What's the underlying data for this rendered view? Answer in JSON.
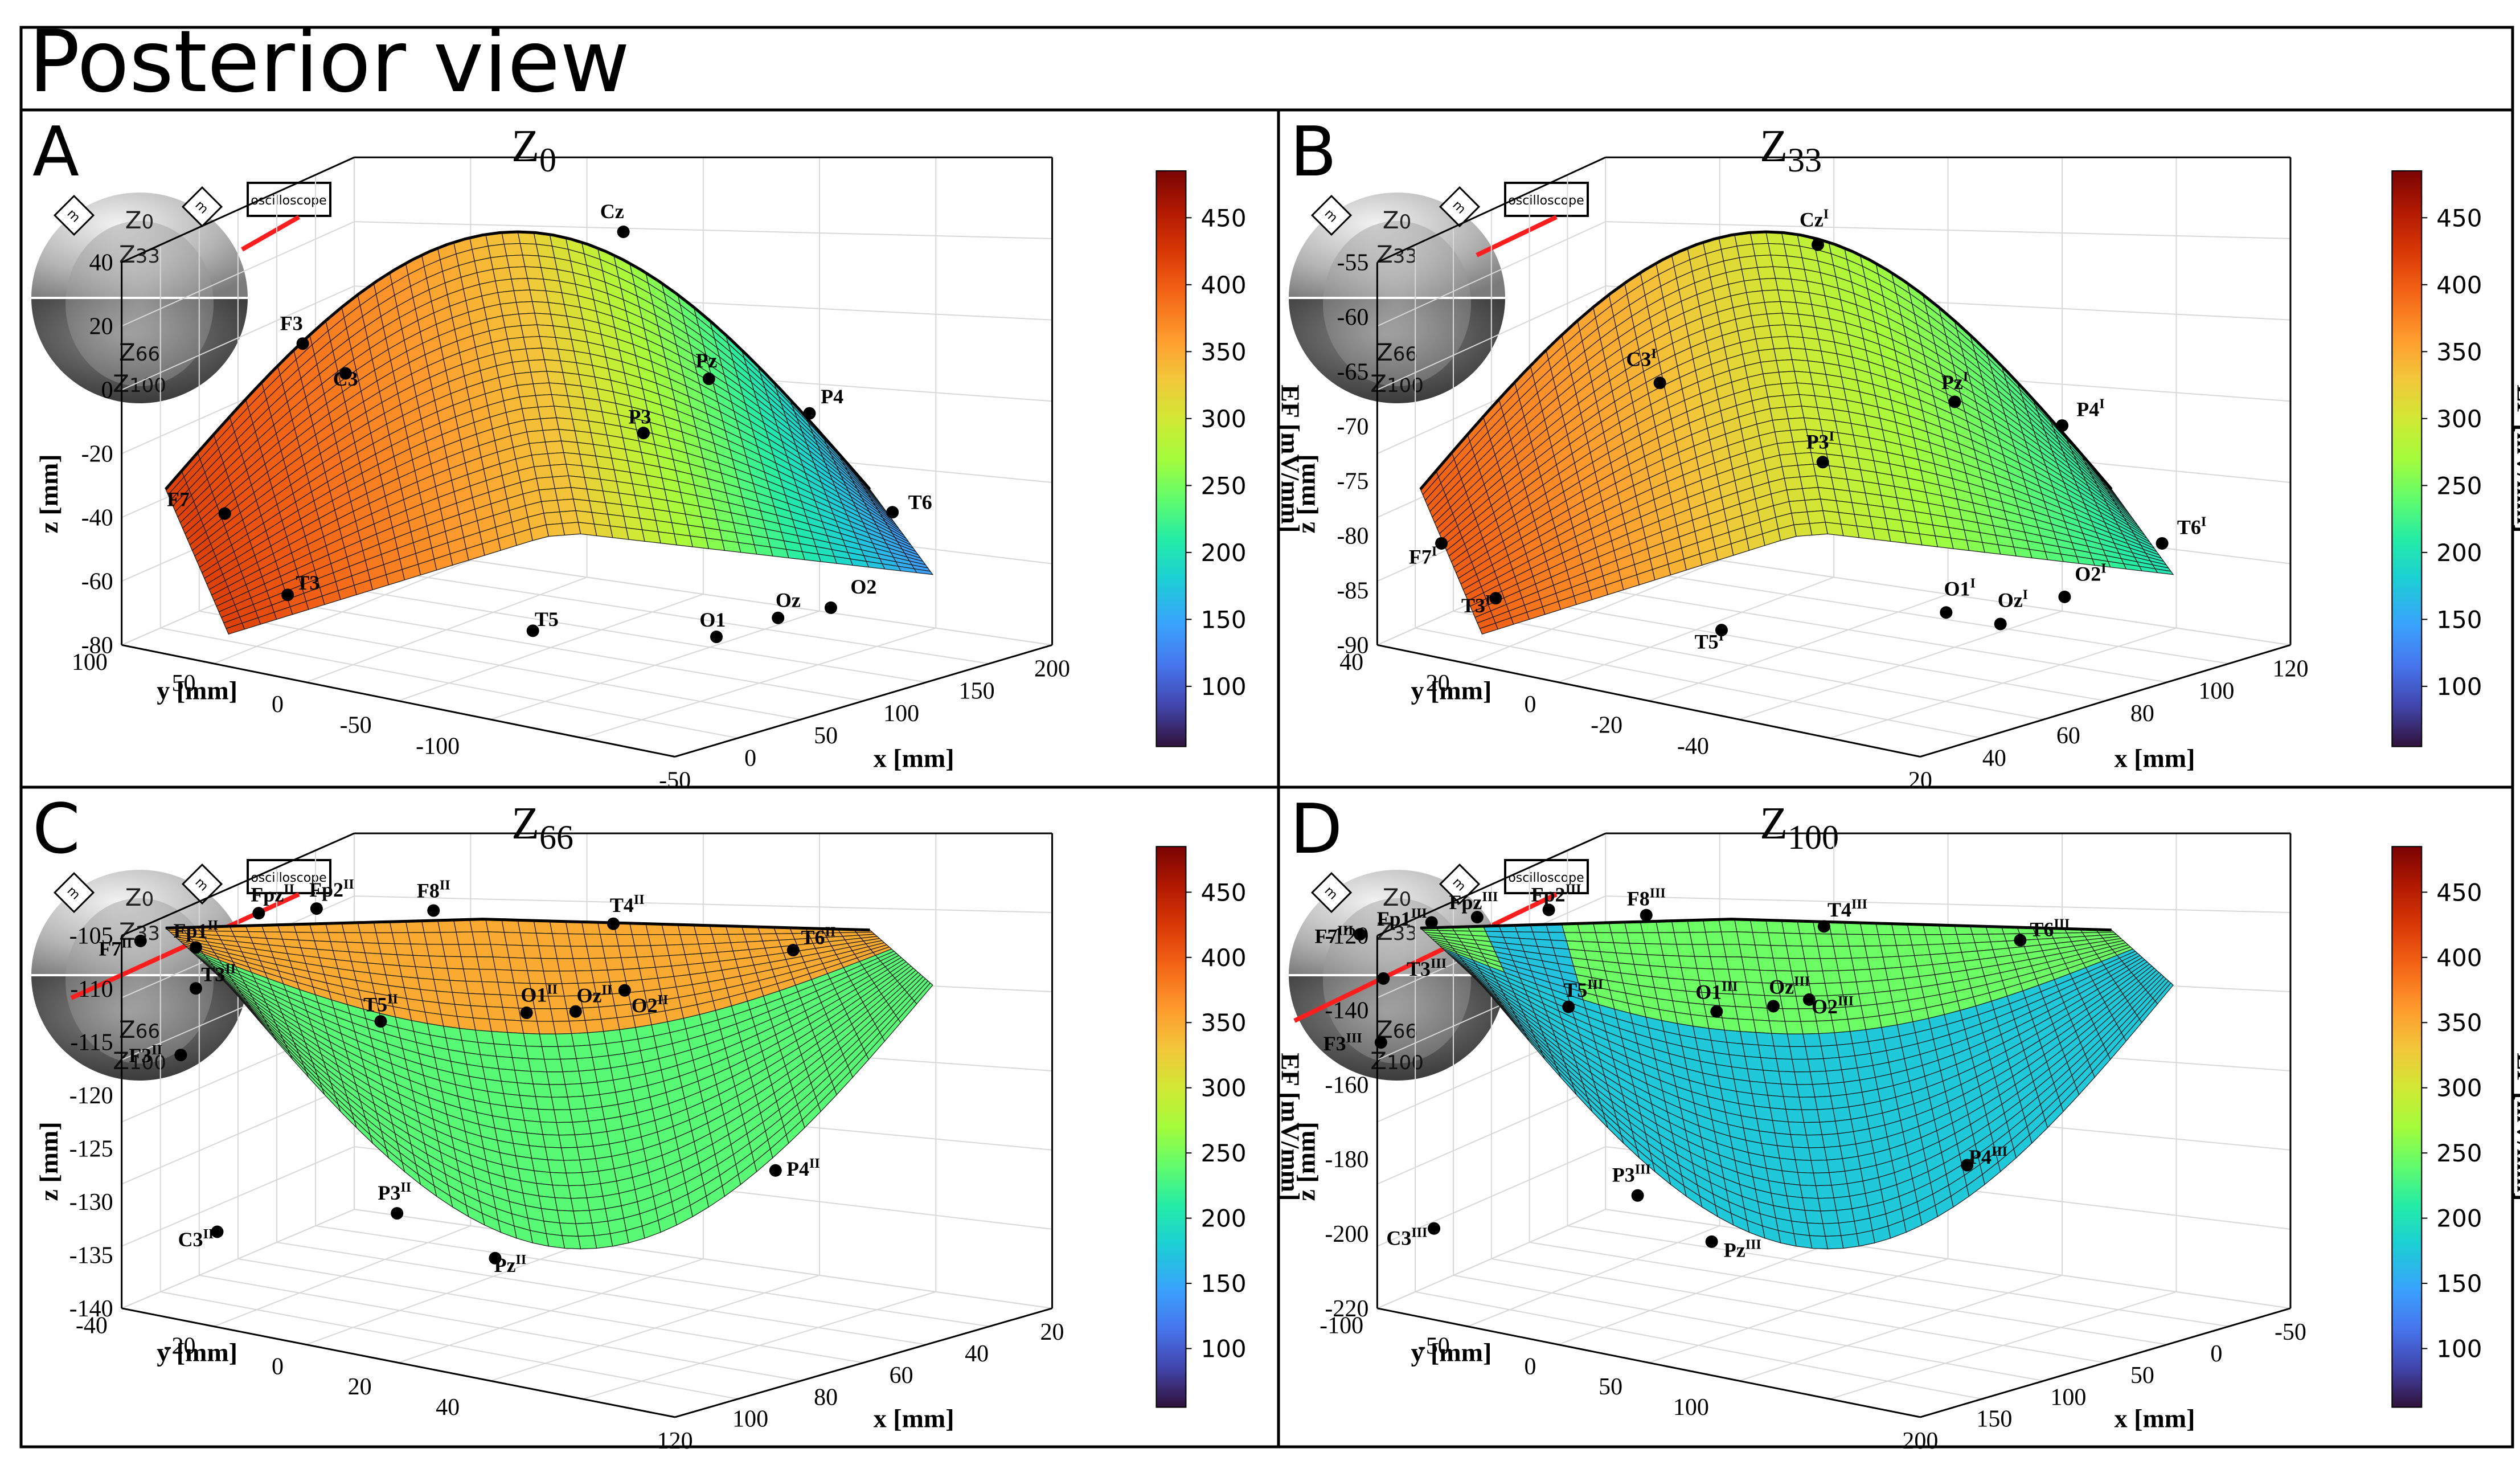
{
  "figure": {
    "title": "Posterior view"
  },
  "colorbar": {
    "label": "EF [mV/mm]",
    "ticks": [
      "100",
      "150",
      "200",
      "250",
      "300",
      "350",
      "400",
      "450"
    ],
    "range": [
      55,
      485
    ]
  },
  "inset": {
    "labels": [
      "Z0",
      "Z33",
      "Z66",
      "Z100"
    ],
    "electrode_label": "m",
    "scope_label": "oscilloscope"
  },
  "chart_data": [
    {
      "panel": "A",
      "type": "surface3d",
      "title": "Z0",
      "title_main": "Z",
      "title_sub": "0",
      "xlabel": "x [mm]",
      "ylabel": "y [mm]",
      "zlabel": "z [mm]",
      "xticks": [
        "-50",
        "0",
        "50",
        "100",
        "150",
        "200"
      ],
      "yticks": [
        "100",
        "50",
        "0",
        "-50",
        "-100"
      ],
      "zticks": [
        "40",
        "20",
        "0",
        "-20",
        "-40",
        "-60",
        "-80"
      ],
      "zlim": [
        -80,
        40
      ],
      "shape": "dome",
      "electrodes": [
        {
          "name": "Cz",
          "sup": ""
        },
        {
          "name": "F3",
          "sup": ""
        },
        {
          "name": "C3",
          "sup": ""
        },
        {
          "name": "Pz",
          "sup": ""
        },
        {
          "name": "P4",
          "sup": ""
        },
        {
          "name": "P3",
          "sup": ""
        },
        {
          "name": "F7",
          "sup": ""
        },
        {
          "name": "T6",
          "sup": ""
        },
        {
          "name": "T3",
          "sup": ""
        },
        {
          "name": "T5",
          "sup": ""
        },
        {
          "name": "O1",
          "sup": ""
        },
        {
          "name": "Oz",
          "sup": ""
        },
        {
          "name": "O2",
          "sup": ""
        }
      ],
      "ef_left": 420,
      "ef_center": 330,
      "ef_right": 140
    },
    {
      "panel": "B",
      "type": "surface3d",
      "title": "Z33",
      "title_main": "Z",
      "title_sub": "33",
      "xlabel": "x [mm]",
      "ylabel": "y [mm]",
      "zlabel": "z [mm]",
      "xticks": [
        "20",
        "40",
        "60",
        "80",
        "100",
        "120"
      ],
      "yticks": [
        "40",
        "20",
        "0",
        "-20",
        "-40"
      ],
      "zticks": [
        "-55",
        "-60",
        "-65",
        "-70",
        "-75",
        "-80",
        "-85",
        "-90"
      ],
      "zlim": [
        -90,
        -55
      ],
      "shape": "dome",
      "electrodes": [
        {
          "name": "Cz",
          "sup": "I"
        },
        {
          "name": "C3",
          "sup": "I"
        },
        {
          "name": "Pz",
          "sup": "I"
        },
        {
          "name": "P4",
          "sup": "I"
        },
        {
          "name": "P3",
          "sup": "I"
        },
        {
          "name": "F7",
          "sup": "I"
        },
        {
          "name": "T6",
          "sup": "I"
        },
        {
          "name": "T3",
          "sup": "I"
        },
        {
          "name": "T5",
          "sup": "I"
        },
        {
          "name": "O1",
          "sup": "I"
        },
        {
          "name": "Oz",
          "sup": "I"
        },
        {
          "name": "O2",
          "sup": "I"
        }
      ],
      "ef_left": 400,
      "ef_center": 300,
      "ef_right": 200
    },
    {
      "panel": "C",
      "type": "surface3d",
      "title": "Z66",
      "title_main": "Z",
      "title_sub": "66",
      "xlabel": "x [mm]",
      "ylabel": "y [mm]",
      "zlabel": "z [mm]",
      "xticks": [
        "120",
        "100",
        "80",
        "60",
        "40",
        "20"
      ],
      "yticks": [
        "-40",
        "-20",
        "0",
        "20",
        "40"
      ],
      "zticks": [
        "-105",
        "-110",
        "-115",
        "-120",
        "-125",
        "-130",
        "-135",
        "-140"
      ],
      "zlim": [
        -140,
        -105
      ],
      "shape": "bowl",
      "electrodes": [
        {
          "name": "Fp1",
          "sup": "II"
        },
        {
          "name": "Fpz",
          "sup": "II"
        },
        {
          "name": "Fp2",
          "sup": "II"
        },
        {
          "name": "F8",
          "sup": "II"
        },
        {
          "name": "T4",
          "sup": "II"
        },
        {
          "name": "F7",
          "sup": "II"
        },
        {
          "name": "T6",
          "sup": "II"
        },
        {
          "name": "T3",
          "sup": "II"
        },
        {
          "name": "T5",
          "sup": "II"
        },
        {
          "name": "O1",
          "sup": "II"
        },
        {
          "name": "Oz",
          "sup": "II"
        },
        {
          "name": "O2",
          "sup": "II"
        },
        {
          "name": "F3",
          "sup": "II"
        },
        {
          "name": "P4",
          "sup": "II"
        },
        {
          "name": "P3",
          "sup": "II"
        },
        {
          "name": "C3",
          "sup": "II"
        },
        {
          "name": "Pz",
          "sup": "II"
        }
      ],
      "ef_rim": 350,
      "ef_bowl": 235
    },
    {
      "panel": "D",
      "type": "surface3d",
      "title": "Z100",
      "title_main": "Z",
      "title_sub": "100",
      "xlabel": "x [mm]",
      "ylabel": "y [mm]",
      "zlabel": "z [mm]",
      "xticks": [
        "200",
        "150",
        "100",
        "50",
        "0",
        "-50"
      ],
      "yticks": [
        "-100",
        "-50",
        "0",
        "50",
        "100"
      ],
      "zticks": [
        "-120",
        "-140",
        "-160",
        "-180",
        "-200",
        "-220"
      ],
      "zlim": [
        -220,
        -120
      ],
      "shape": "bowl",
      "electrodes": [
        {
          "name": "Fp1",
          "sup": "III"
        },
        {
          "name": "Fpz",
          "sup": "III"
        },
        {
          "name": "Fp2",
          "sup": "III"
        },
        {
          "name": "F8",
          "sup": "III"
        },
        {
          "name": "T4",
          "sup": "III"
        },
        {
          "name": "F7",
          "sup": "III"
        },
        {
          "name": "T6",
          "sup": "III"
        },
        {
          "name": "T3",
          "sup": "III"
        },
        {
          "name": "T5",
          "sup": "III"
        },
        {
          "name": "O1",
          "sup": "III"
        },
        {
          "name": "Oz",
          "sup": "III"
        },
        {
          "name": "O2",
          "sup": "III"
        },
        {
          "name": "F3",
          "sup": "III"
        },
        {
          "name": "P4",
          "sup": "III"
        },
        {
          "name": "P3",
          "sup": "III"
        },
        {
          "name": "C3",
          "sup": "III"
        },
        {
          "name": "Pz",
          "sup": "III"
        }
      ],
      "ef_rim": 245,
      "ef_bowl": 175
    }
  ]
}
